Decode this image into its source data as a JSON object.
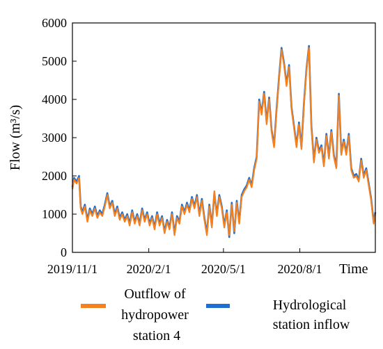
{
  "chart_data": {
    "type": "line",
    "title": "",
    "xlabel": "Time",
    "ylabel": "Flow (m³/s)",
    "ylim": [
      0,
      6000
    ],
    "yticks": [
      0,
      1000,
      2000,
      3000,
      4000,
      5000,
      6000
    ],
    "xlim": [
      "2019-11-01",
      "2020-10-31"
    ],
    "xticks": [
      {
        "date": "2019-11-01",
        "label": "2019/11/1"
      },
      {
        "date": "2020-02-01",
        "label": "2020/2/1"
      },
      {
        "date": "2020-05-01",
        "label": "2020/5/1"
      },
      {
        "date": "2020-08-01",
        "label": "2020/8/1"
      }
    ],
    "grid": false,
    "legend_position": "bottom",
    "series": [
      {
        "name": "Hydrological station inflow",
        "color": "#1f6fd0",
        "points": [
          [
            "2019-11-01",
            1700
          ],
          [
            "2019-11-03",
            1950
          ],
          [
            "2019-11-06",
            1850
          ],
          [
            "2019-11-09",
            2000
          ],
          [
            "2019-11-11",
            1200
          ],
          [
            "2019-11-13",
            1050
          ],
          [
            "2019-11-16",
            1250
          ],
          [
            "2019-11-19",
            850
          ],
          [
            "2019-11-22",
            1150
          ],
          [
            "2019-11-25",
            1000
          ],
          [
            "2019-11-28",
            1200
          ],
          [
            "2019-12-01",
            950
          ],
          [
            "2019-12-04",
            1100
          ],
          [
            "2019-12-07",
            1000
          ],
          [
            "2019-12-10",
            1250
          ],
          [
            "2019-12-13",
            1550
          ],
          [
            "2019-12-16",
            1200
          ],
          [
            "2019-12-19",
            1350
          ],
          [
            "2019-12-22",
            1000
          ],
          [
            "2019-12-25",
            1200
          ],
          [
            "2019-12-28",
            900
          ],
          [
            "2019-12-31",
            1050
          ],
          [
            "2020-01-03",
            850
          ],
          [
            "2020-01-06",
            1000
          ],
          [
            "2020-01-09",
            750
          ],
          [
            "2020-01-12",
            1100
          ],
          [
            "2020-01-15",
            800
          ],
          [
            "2020-01-18",
            1000
          ],
          [
            "2020-01-21",
            750
          ],
          [
            "2020-01-24",
            1150
          ],
          [
            "2020-01-27",
            850
          ],
          [
            "2020-01-30",
            1050
          ],
          [
            "2020-02-02",
            750
          ],
          [
            "2020-02-05",
            950
          ],
          [
            "2020-02-08",
            650
          ],
          [
            "2020-02-11",
            1050
          ],
          [
            "2020-02-14",
            750
          ],
          [
            "2020-02-17",
            950
          ],
          [
            "2020-02-20",
            550
          ],
          [
            "2020-02-23",
            850
          ],
          [
            "2020-02-26",
            650
          ],
          [
            "2020-02-29",
            1050
          ],
          [
            "2020-03-03",
            500
          ],
          [
            "2020-03-06",
            950
          ],
          [
            "2020-03-09",
            800
          ],
          [
            "2020-03-12",
            1250
          ],
          [
            "2020-03-15",
            1050
          ],
          [
            "2020-03-18",
            1300
          ],
          [
            "2020-03-21",
            1100
          ],
          [
            "2020-03-24",
            1450
          ],
          [
            "2020-03-27",
            1200
          ],
          [
            "2020-03-30",
            1500
          ],
          [
            "2020-04-02",
            1000
          ],
          [
            "2020-04-05",
            1400
          ],
          [
            "2020-04-08",
            900
          ],
          [
            "2020-04-11",
            500
          ],
          [
            "2020-04-14",
            1250
          ],
          [
            "2020-04-17",
            700
          ],
          [
            "2020-04-20",
            1550
          ],
          [
            "2020-04-23",
            1000
          ],
          [
            "2020-04-26",
            1500
          ],
          [
            "2020-04-29",
            1200
          ],
          [
            "2020-05-02",
            700
          ],
          [
            "2020-05-05",
            1100
          ],
          [
            "2020-05-08",
            400
          ],
          [
            "2020-05-11",
            1300
          ],
          [
            "2020-05-14",
            500
          ],
          [
            "2020-05-17",
            1350
          ],
          [
            "2020-05-20",
            800
          ],
          [
            "2020-05-23",
            1500
          ],
          [
            "2020-05-26",
            1650
          ],
          [
            "2020-05-29",
            1750
          ],
          [
            "2020-06-01",
            1950
          ],
          [
            "2020-06-04",
            1750
          ],
          [
            "2020-06-07",
            2200
          ],
          [
            "2020-06-10",
            2500
          ],
          [
            "2020-06-13",
            4000
          ],
          [
            "2020-06-16",
            3650
          ],
          [
            "2020-06-19",
            4200
          ],
          [
            "2020-06-22",
            3400
          ],
          [
            "2020-06-25",
            4050
          ],
          [
            "2020-06-28",
            3200
          ],
          [
            "2020-07-01",
            2800
          ],
          [
            "2020-07-04",
            3750
          ],
          [
            "2020-07-07",
            4600
          ],
          [
            "2020-07-10",
            5350
          ],
          [
            "2020-07-13",
            4950
          ],
          [
            "2020-07-16",
            4400
          ],
          [
            "2020-07-19",
            4900
          ],
          [
            "2020-07-22",
            3800
          ],
          [
            "2020-07-25",
            3300
          ],
          [
            "2020-07-28",
            2800
          ],
          [
            "2020-07-31",
            3400
          ],
          [
            "2020-08-03",
            2750
          ],
          [
            "2020-08-06",
            3900
          ],
          [
            "2020-08-09",
            4800
          ],
          [
            "2020-08-12",
            5400
          ],
          [
            "2020-08-15",
            3300
          ],
          [
            "2020-08-18",
            2400
          ],
          [
            "2020-08-21",
            3000
          ],
          [
            "2020-08-24",
            2650
          ],
          [
            "2020-08-27",
            2800
          ],
          [
            "2020-08-30",
            2300
          ],
          [
            "2020-09-02",
            3100
          ],
          [
            "2020-09-05",
            2500
          ],
          [
            "2020-09-08",
            3200
          ],
          [
            "2020-09-11",
            2550
          ],
          [
            "2020-09-14",
            2250
          ],
          [
            "2020-09-17",
            4150
          ],
          [
            "2020-09-20",
            2600
          ],
          [
            "2020-09-23",
            2950
          ],
          [
            "2020-09-26",
            2600
          ],
          [
            "2020-09-29",
            3100
          ],
          [
            "2020-10-02",
            2200
          ],
          [
            "2020-10-05",
            2000
          ],
          [
            "2020-10-08",
            2050
          ],
          [
            "2020-10-11",
            1900
          ],
          [
            "2020-10-14",
            2450
          ],
          [
            "2020-10-17",
            2000
          ],
          [
            "2020-10-20",
            2200
          ],
          [
            "2020-10-23",
            1800
          ],
          [
            "2020-10-26",
            1400
          ],
          [
            "2020-10-29",
            800
          ],
          [
            "2020-10-31",
            1050
          ]
        ]
      },
      {
        "name": "Outflow of hydropower station 4",
        "color": "#f5801e",
        "points": [
          [
            "2019-11-01",
            1650
          ],
          [
            "2019-11-03",
            1900
          ],
          [
            "2019-11-06",
            1800
          ],
          [
            "2019-11-09",
            1950
          ],
          [
            "2019-11-11",
            1150
          ],
          [
            "2019-11-13",
            1000
          ],
          [
            "2019-11-16",
            1200
          ],
          [
            "2019-11-19",
            800
          ],
          [
            "2019-11-22",
            1100
          ],
          [
            "2019-11-25",
            950
          ],
          [
            "2019-11-28",
            1150
          ],
          [
            "2019-12-01",
            900
          ],
          [
            "2019-12-04",
            1050
          ],
          [
            "2019-12-07",
            950
          ],
          [
            "2019-12-10",
            1200
          ],
          [
            "2019-12-13",
            1500
          ],
          [
            "2019-12-16",
            1150
          ],
          [
            "2019-12-19",
            1300
          ],
          [
            "2019-12-22",
            950
          ],
          [
            "2019-12-25",
            1150
          ],
          [
            "2019-12-28",
            850
          ],
          [
            "2019-12-31",
            1000
          ],
          [
            "2020-01-03",
            800
          ],
          [
            "2020-01-06",
            950
          ],
          [
            "2020-01-09",
            700
          ],
          [
            "2020-01-12",
            1050
          ],
          [
            "2020-01-15",
            750
          ],
          [
            "2020-01-18",
            950
          ],
          [
            "2020-01-21",
            700
          ],
          [
            "2020-01-24",
            1100
          ],
          [
            "2020-01-27",
            800
          ],
          [
            "2020-01-30",
            1000
          ],
          [
            "2020-02-02",
            700
          ],
          [
            "2020-02-05",
            900
          ],
          [
            "2020-02-08",
            600
          ],
          [
            "2020-02-11",
            1000
          ],
          [
            "2020-02-14",
            700
          ],
          [
            "2020-02-17",
            900
          ],
          [
            "2020-02-20",
            500
          ],
          [
            "2020-02-23",
            800
          ],
          [
            "2020-02-26",
            600
          ],
          [
            "2020-02-29",
            1000
          ],
          [
            "2020-03-03",
            450
          ],
          [
            "2020-03-06",
            900
          ],
          [
            "2020-03-09",
            750
          ],
          [
            "2020-03-12",
            1200
          ],
          [
            "2020-03-15",
            1000
          ],
          [
            "2020-03-18",
            1250
          ],
          [
            "2020-03-21",
            1050
          ],
          [
            "2020-03-24",
            1400
          ],
          [
            "2020-03-27",
            1150
          ],
          [
            "2020-03-30",
            1450
          ],
          [
            "2020-04-02",
            950
          ],
          [
            "2020-04-05",
            1350
          ],
          [
            "2020-04-08",
            850
          ],
          [
            "2020-04-11",
            450
          ],
          [
            "2020-04-14",
            1200
          ],
          [
            "2020-04-17",
            650
          ],
          [
            "2020-04-20",
            1600
          ],
          [
            "2020-04-23",
            950
          ],
          [
            "2020-04-26",
            1450
          ],
          [
            "2020-04-29",
            1150
          ],
          [
            "2020-05-02",
            650
          ],
          [
            "2020-05-05",
            1050
          ],
          [
            "2020-05-08",
            450
          ],
          [
            "2020-05-11",
            1250
          ],
          [
            "2020-05-14",
            550
          ],
          [
            "2020-05-17",
            1300
          ],
          [
            "2020-05-20",
            750
          ],
          [
            "2020-05-23",
            1450
          ],
          [
            "2020-05-26",
            1600
          ],
          [
            "2020-05-29",
            1700
          ],
          [
            "2020-06-01",
            1900
          ],
          [
            "2020-06-04",
            1700
          ],
          [
            "2020-06-07",
            2150
          ],
          [
            "2020-06-10",
            2450
          ],
          [
            "2020-06-13",
            3950
          ],
          [
            "2020-06-16",
            3600
          ],
          [
            "2020-06-19",
            4150
          ],
          [
            "2020-06-22",
            3350
          ],
          [
            "2020-06-25",
            4000
          ],
          [
            "2020-06-28",
            3150
          ],
          [
            "2020-07-01",
            2750
          ],
          [
            "2020-07-04",
            3700
          ],
          [
            "2020-07-07",
            4550
          ],
          [
            "2020-07-10",
            5300
          ],
          [
            "2020-07-13",
            4900
          ],
          [
            "2020-07-16",
            4350
          ],
          [
            "2020-07-19",
            4850
          ],
          [
            "2020-07-22",
            3750
          ],
          [
            "2020-07-25",
            3250
          ],
          [
            "2020-07-28",
            2750
          ],
          [
            "2020-07-31",
            3350
          ],
          [
            "2020-08-03",
            2700
          ],
          [
            "2020-08-06",
            3850
          ],
          [
            "2020-08-09",
            4750
          ],
          [
            "2020-08-12",
            5350
          ],
          [
            "2020-08-15",
            3250
          ],
          [
            "2020-08-18",
            2350
          ],
          [
            "2020-08-21",
            2950
          ],
          [
            "2020-08-24",
            2600
          ],
          [
            "2020-08-27",
            2750
          ],
          [
            "2020-08-30",
            2250
          ],
          [
            "2020-09-02",
            3050
          ],
          [
            "2020-09-05",
            2450
          ],
          [
            "2020-09-08",
            3150
          ],
          [
            "2020-09-11",
            2500
          ],
          [
            "2020-09-14",
            2200
          ],
          [
            "2020-09-17",
            4100
          ],
          [
            "2020-09-20",
            2550
          ],
          [
            "2020-09-23",
            2900
          ],
          [
            "2020-09-26",
            2550
          ],
          [
            "2020-09-29",
            3050
          ],
          [
            "2020-10-02",
            2150
          ],
          [
            "2020-10-05",
            1950
          ],
          [
            "2020-10-08",
            2000
          ],
          [
            "2020-10-11",
            1850
          ],
          [
            "2020-10-14",
            2400
          ],
          [
            "2020-10-17",
            1950
          ],
          [
            "2020-10-20",
            2150
          ],
          [
            "2020-10-23",
            1750
          ],
          [
            "2020-10-26",
            1350
          ],
          [
            "2020-10-29",
            750
          ],
          [
            "2020-10-31",
            1000
          ]
        ]
      }
    ]
  },
  "legend": {
    "items": [
      {
        "label_lines": [
          "Outflow of",
          "hydropower",
          "station 4"
        ],
        "color": "#f5801e"
      },
      {
        "label_lines": [
          "Hydrological",
          "station inflow"
        ],
        "color": "#1f6fd0"
      }
    ]
  }
}
